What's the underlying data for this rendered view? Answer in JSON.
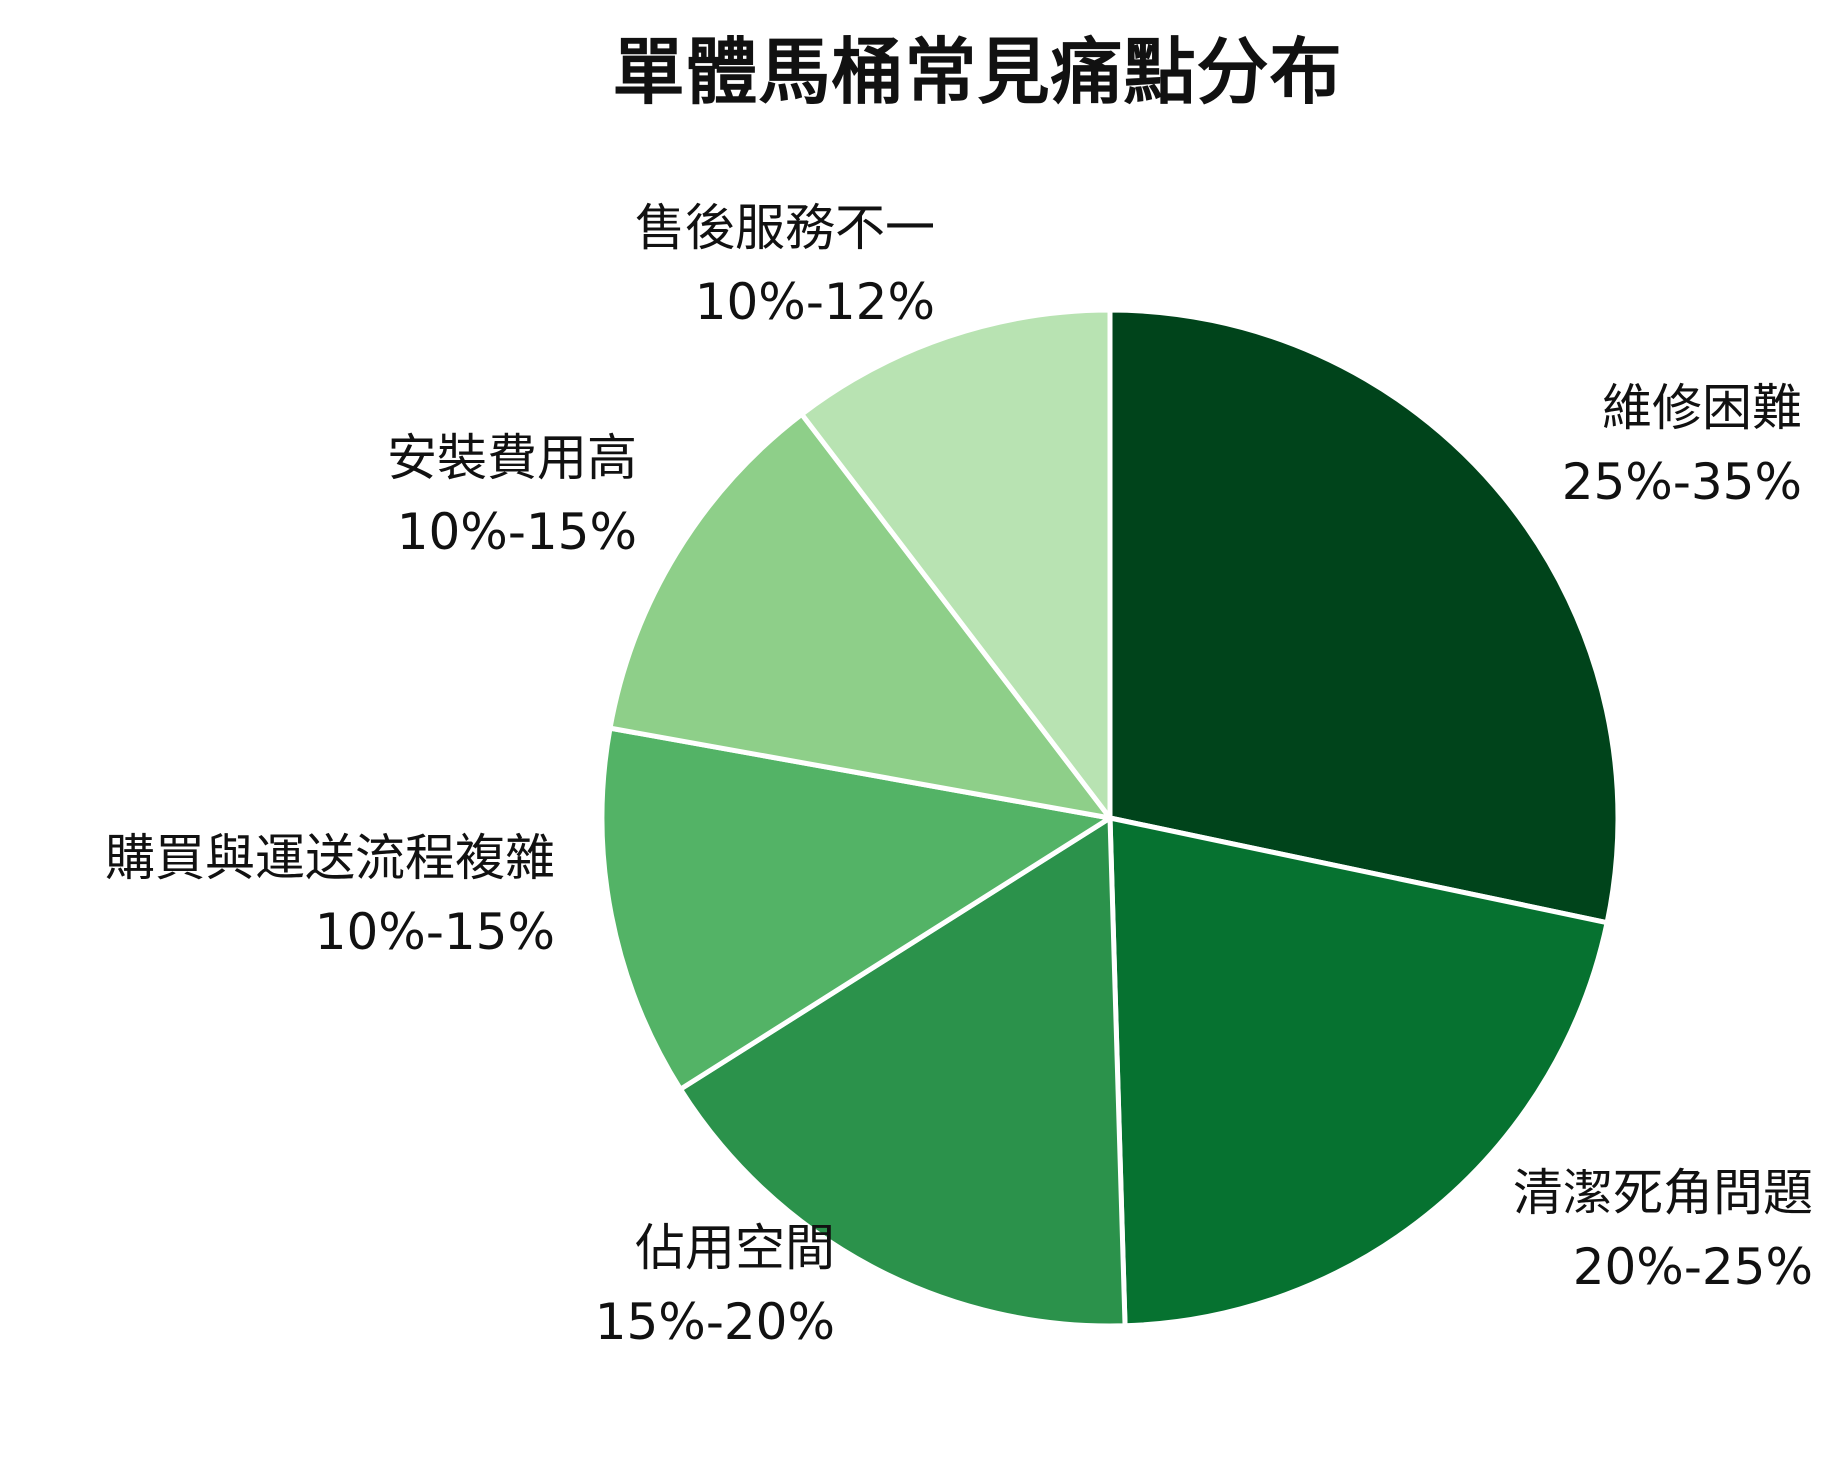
{
  "chart_data": {
    "type": "pie",
    "title": "單體馬桶常見痛點分布",
    "slices": [
      {
        "label": "維修困難",
        "range": "25%-35%",
        "value": 30,
        "color": "#00441b"
      },
      {
        "label": "清潔死角問題",
        "range": "20%-25%",
        "value": 22.5,
        "color": "#067230"
      },
      {
        "label": "佔用空間",
        "range": "15%-20%",
        "value": 17.5,
        "color": "#2b924b"
      },
      {
        "label": "購買與運送流程複雜",
        "range": "10%-15%",
        "value": 12.5,
        "color": "#53b366"
      },
      {
        "label": "安裝費用高",
        "range": "10%-15%",
        "value": 12.5,
        "color": "#8ecf89"
      },
      {
        "label": "售後服務不一",
        "range": "10%-12%",
        "value": 11,
        "color": "#b8e3b2"
      }
    ]
  }
}
